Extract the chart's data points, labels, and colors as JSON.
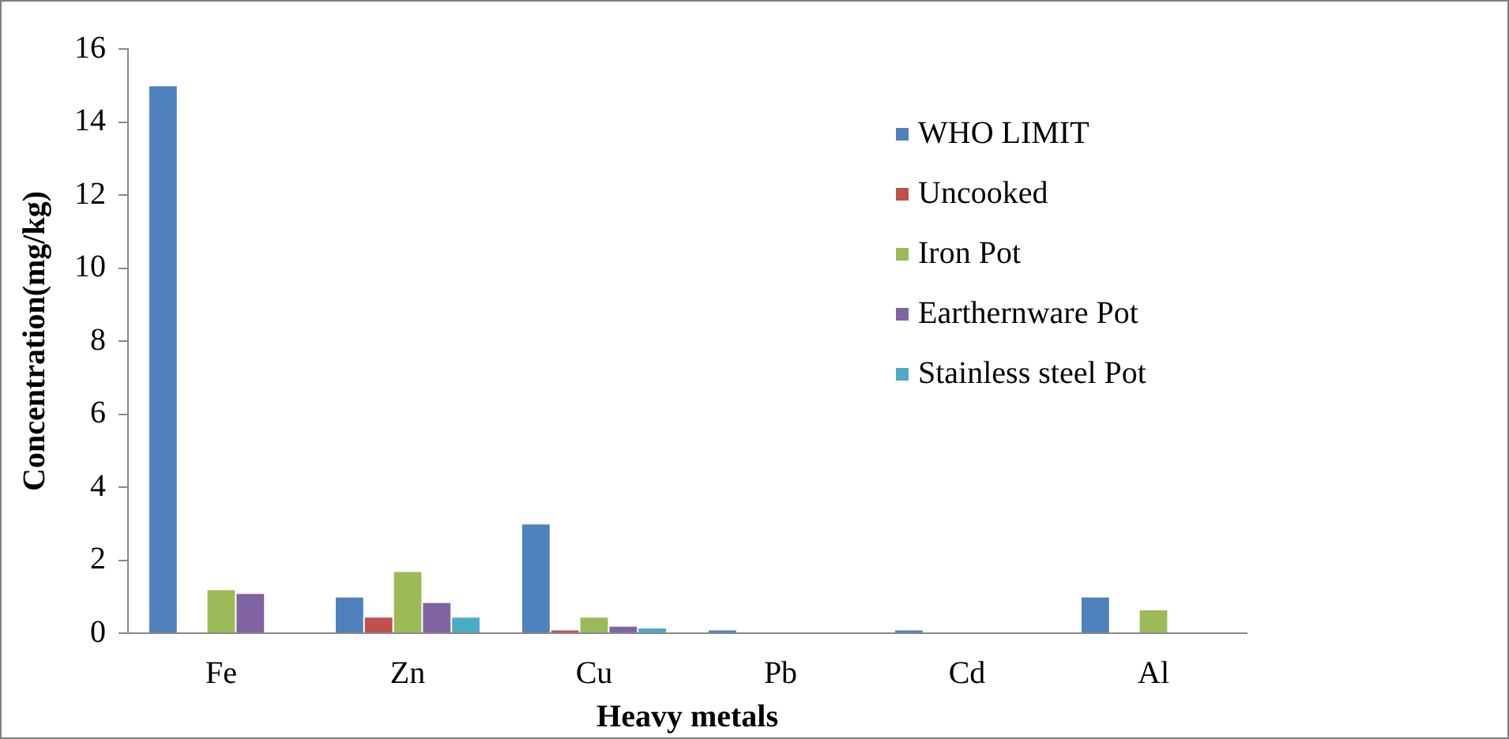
{
  "chart_data": {
    "type": "bar",
    "xlabel": "Heavy metals",
    "ylabel": "Concentration(mg/kg)",
    "categories": [
      "Fe",
      "Zn",
      "Cu",
      "Pb",
      "Cd",
      "Al"
    ],
    "series": [
      {
        "name": "WHO LIMIT",
        "color": "#4f81bd",
        "values": [
          15,
          1,
          3,
          0.1,
          0.1,
          1
        ]
      },
      {
        "name": "Uncooked",
        "color": "#c0504d",
        "values": [
          0,
          0.45,
          0.1,
          0,
          0,
          0
        ]
      },
      {
        "name": "Iron Pot",
        "color": "#9bbb59",
        "values": [
          1.2,
          1.7,
          0.45,
          0,
          0,
          0.65
        ]
      },
      {
        "name": "Earthernware Pot",
        "color": "#8064a2",
        "values": [
          1.1,
          0.85,
          0.2,
          0,
          0,
          0
        ]
      },
      {
        "name": "Stainless steel Pot",
        "color": "#4bacc6",
        "values": [
          0,
          0.45,
          0.15,
          0,
          0,
          0
        ]
      }
    ],
    "ylim": [
      0,
      16
    ],
    "yticks": [
      0,
      2,
      4,
      6,
      8,
      10,
      12,
      14,
      16
    ],
    "grid": false,
    "legend": "top right"
  }
}
